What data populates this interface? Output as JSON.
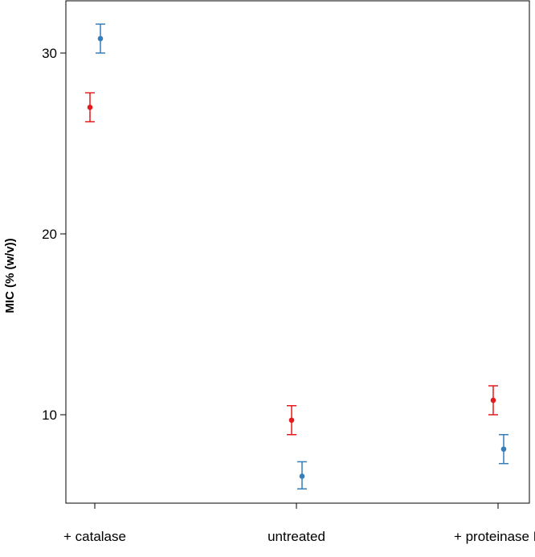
{
  "chart_data": {
    "type": "scatter",
    "title": "",
    "xlabel": "",
    "ylabel": "MIC (% (w/v))",
    "categories": [
      "+ catalase",
      "untreated",
      "+ proteinase K"
    ],
    "ylim": [
      5,
      33
    ],
    "yticks": [
      "10",
      "20",
      "30"
    ],
    "grid": false,
    "error_bars": true,
    "series": [
      {
        "color": "#e41a1c",
        "values": [
          27.0,
          9.7,
          10.8
        ],
        "lower": [
          26.2,
          8.9,
          10.0
        ],
        "upper": [
          27.8,
          10.5,
          11.6
        ]
      },
      {
        "color": "#377eb8",
        "values": [
          30.8,
          6.6,
          8.1
        ],
        "lower": [
          30.0,
          5.9,
          7.3
        ],
        "upper": [
          31.6,
          7.4,
          8.9
        ]
      }
    ]
  }
}
